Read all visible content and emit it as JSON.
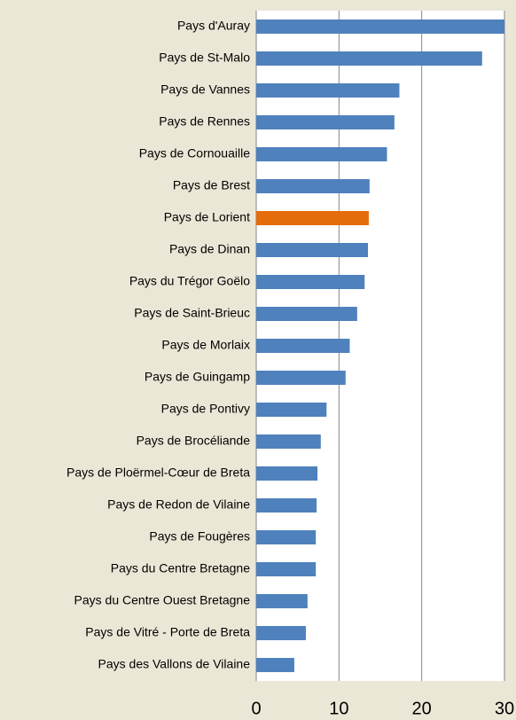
{
  "chart_data": {
    "type": "barh",
    "categories": [
      "Pays d'Auray",
      "Pays de St-Malo",
      "Pays de Vannes",
      "Pays de Rennes",
      "Pays de Cornouaille",
      "Pays de Brest",
      "Pays de Lorient",
      "Pays de Dinan",
      "Pays du Trégor Goëlo",
      "Pays de Saint-Brieuc",
      "Pays de Morlaix",
      "Pays de Guingamp",
      "Pays de Pontivy",
      "Pays de Brocéliande",
      "Pays de Ploërmel-Cœur de Breta",
      "Pays de Redon de Vilaine",
      "Pays de Fougères",
      "Pays du Centre Bretagne",
      "Pays du Centre Ouest Bretagne",
      "Pays de Vitré - Porte de Breta",
      "Pays des Vallons de Vilaine"
    ],
    "values": [
      30,
      27.3,
      17.3,
      16.7,
      15.8,
      13.7,
      13.6,
      13.5,
      13.1,
      12.2,
      11.3,
      10.8,
      8.5,
      7.8,
      7.4,
      7.3,
      7.2,
      7.2,
      6.2,
      6.0,
      4.6
    ],
    "colors": [
      "#4f81bd",
      "#4f81bd",
      "#4f81bd",
      "#4f81bd",
      "#4f81bd",
      "#4f81bd",
      "#e46c0a",
      "#4f81bd",
      "#4f81bd",
      "#4f81bd",
      "#4f81bd",
      "#4f81bd",
      "#4f81bd",
      "#4f81bd",
      "#4f81bd",
      "#4f81bd",
      "#4f81bd",
      "#4f81bd",
      "#4f81bd",
      "#4f81bd",
      "#4f81bd"
    ],
    "xlim": [
      0,
      30
    ],
    "xticks": [
      0,
      10,
      20,
      30
    ],
    "grid": true
  }
}
